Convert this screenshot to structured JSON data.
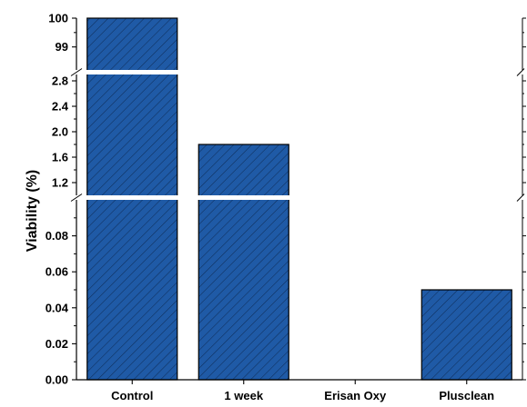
{
  "chart_data": {
    "type": "bar",
    "categories": [
      "Control",
      "1 week",
      "Erisan Oxy",
      "Plusclean"
    ],
    "values": [
      100,
      1.8,
      0,
      0.05
    ],
    "title": "",
    "xlabel": "",
    "ylabel": "Viability (%)",
    "y_axis_breaks": true,
    "segments": [
      {
        "ylim": [
          0,
          0.1
        ],
        "ticks": [
          "0.00",
          "0.02",
          "0.04",
          "0.06",
          "0.08"
        ]
      },
      {
        "ylim": [
          1.0,
          2.9
        ],
        "ticks": [
          "1.2",
          "1.6",
          "2.0",
          "2.4",
          "2.8"
        ]
      },
      {
        "ylim": [
          98.2,
          100
        ],
        "ticks": [
          "99",
          "100"
        ]
      }
    ],
    "bar_color": "#1f5aa6",
    "bar_pattern": "diagonal-hatch",
    "grid": false,
    "legend": "none"
  }
}
